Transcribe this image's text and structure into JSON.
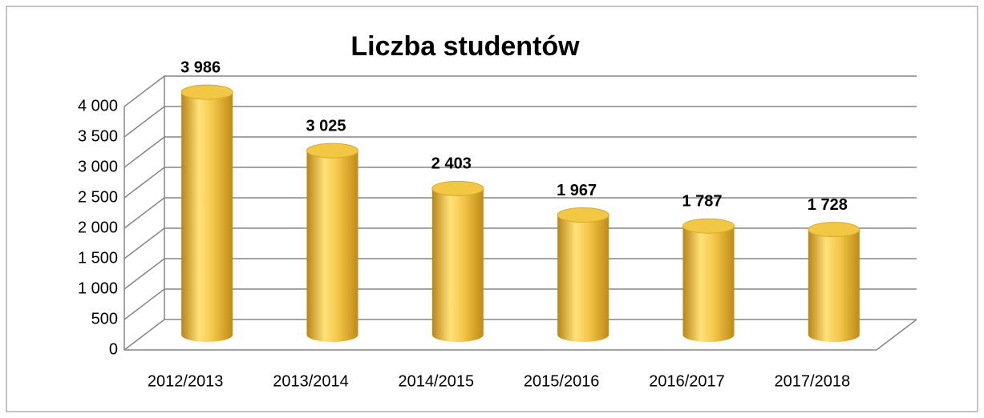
{
  "chart_data": {
    "type": "bar3d",
    "title": "Liczba studentów",
    "categories": [
      "2012/2013",
      "2013/2014",
      "2014/2015",
      "2015/2016",
      "2016/2017",
      "2017/2018"
    ],
    "values": [
      3986,
      3025,
      2403,
      1967,
      1787,
      1728
    ],
    "value_labels": [
      "3 986",
      "3 025",
      "2 403",
      "1 967",
      "1 787",
      "1 728"
    ],
    "color": "#f2c744",
    "ylim": [
      0,
      4000
    ],
    "yticks": [
      0,
      500,
      {
        "value": 1000,
        "label": "1 000"
      },
      {
        "value": 1500,
        "label": "1 500"
      },
      {
        "value": 2000,
        "label": "2 000"
      },
      {
        "value": 2500,
        "label": "2 500"
      },
      {
        "value": 3000,
        "label": "3 000"
      },
      {
        "value": 3500,
        "label": "3 500"
      },
      {
        "value": 4000,
        "label": "4 000"
      }
    ],
    "grid": true
  }
}
